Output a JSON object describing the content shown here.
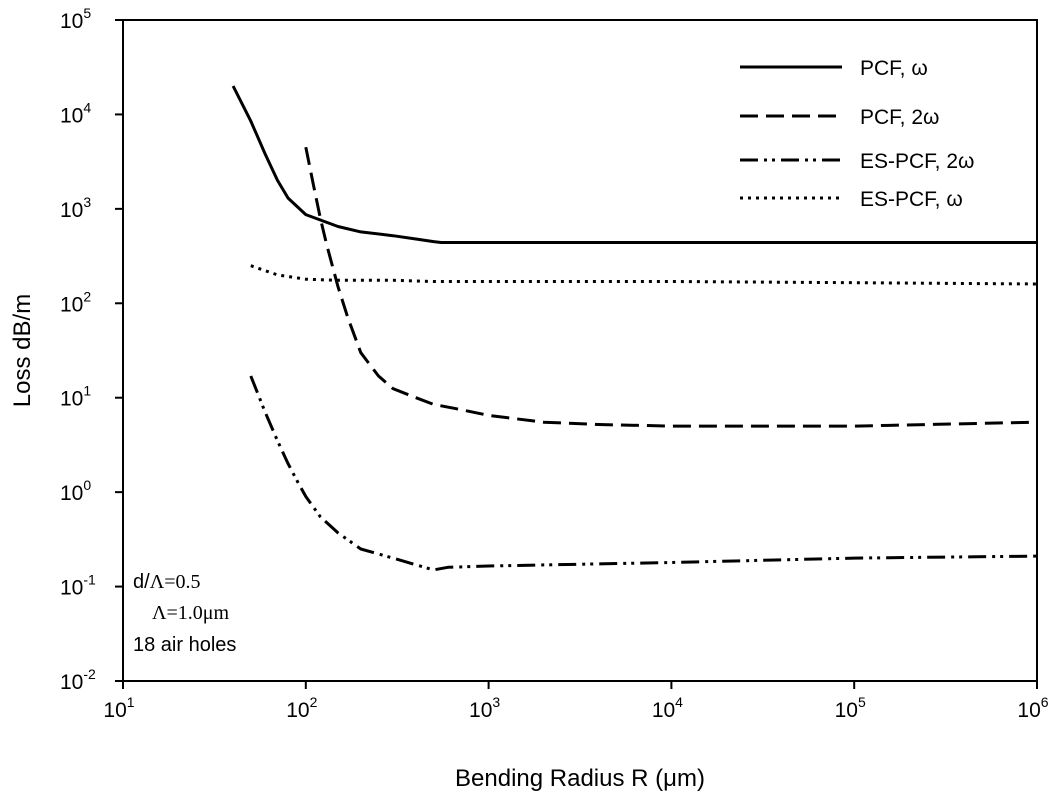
{
  "chart_data": {
    "type": "line",
    "title": "",
    "xlabel": "Bending Radius  R (μm)",
    "ylabel": "Loss dB/m",
    "xscale": "log",
    "yscale": "log",
    "xlim": [
      10,
      1000000
    ],
    "ylim": [
      0.01,
      100000
    ],
    "grid": false,
    "legend_position": "top-right",
    "x_ticks": [
      {
        "base": "10",
        "exp": "1"
      },
      {
        "base": "10",
        "exp": "2"
      },
      {
        "base": "10",
        "exp": "3"
      },
      {
        "base": "10",
        "exp": "4"
      },
      {
        "base": "10",
        "exp": "5"
      },
      {
        "base": "10",
        "exp": "6"
      }
    ],
    "y_ticks": [
      {
        "base": "10",
        "exp": "-2"
      },
      {
        "base": "10",
        "exp": "-1"
      },
      {
        "base": "10",
        "exp": "0"
      },
      {
        "base": "10",
        "exp": "1"
      },
      {
        "base": "10",
        "exp": "2"
      },
      {
        "base": "10",
        "exp": "3"
      },
      {
        "base": "10",
        "exp": "4"
      },
      {
        "base": "10",
        "exp": "5"
      }
    ],
    "annotations": [
      {
        "lines": [
          [
            {
              "t": "d/",
              "f": "sans"
            },
            {
              "t": "Λ=0.5",
              "f": "serif"
            }
          ],
          [
            {
              "t": "Λ=1.0",
              "f": "serif"
            },
            {
              "t": "μm",
              "f": "serif"
            }
          ],
          [
            {
              "t": "18 air holes",
              "f": "sans"
            }
          ]
        ]
      }
    ],
    "series": [
      {
        "name": "PCF, ω",
        "style": "solid",
        "color": "#000000",
        "x": [
          40,
          50,
          60,
          70,
          80,
          100,
          150,
          200,
          300,
          400,
          500,
          550,
          1000,
          10000,
          100000,
          1000000
        ],
        "y": [
          20000,
          8500,
          3800,
          2000,
          1300,
          870,
          650,
          570,
          520,
          480,
          450,
          440,
          440,
          440,
          440,
          440
        ]
      },
      {
        "name": "PCF, 2ω",
        "style": "dashed",
        "color": "#000000",
        "x": [
          100,
          110,
          120,
          130,
          150,
          170,
          200,
          250,
          300,
          400,
          500,
          700,
          1000,
          2000,
          4000,
          10000,
          100000,
          1000000
        ],
        "y": [
          4500,
          1800,
          800,
          420,
          150,
          70,
          30,
          17,
          12.5,
          10,
          8.5,
          7.5,
          6.5,
          5.5,
          5.2,
          5,
          5,
          5.5
        ]
      },
      {
        "name": "ES-PCF, 2ω",
        "style": "dashdotdot",
        "color": "#000000",
        "x": [
          50,
          60,
          70,
          80,
          90,
          100,
          120,
          150,
          200,
          300,
          400,
          500,
          600,
          1000,
          10000,
          100000,
          1000000
        ],
        "y": [
          17,
          7,
          3.5,
          2,
          1.3,
          0.9,
          0.55,
          0.37,
          0.25,
          0.2,
          0.17,
          0.15,
          0.16,
          0.165,
          0.18,
          0.2,
          0.21
        ]
      },
      {
        "name": "ES-PCF, ω",
        "style": "dotted",
        "color": "#000000",
        "x": [
          50,
          70,
          100,
          150,
          300,
          500,
          1000,
          10000,
          100000,
          1000000
        ],
        "y": [
          250,
          200,
          180,
          175,
          175,
          170,
          170,
          170,
          165,
          160
        ]
      }
    ]
  }
}
